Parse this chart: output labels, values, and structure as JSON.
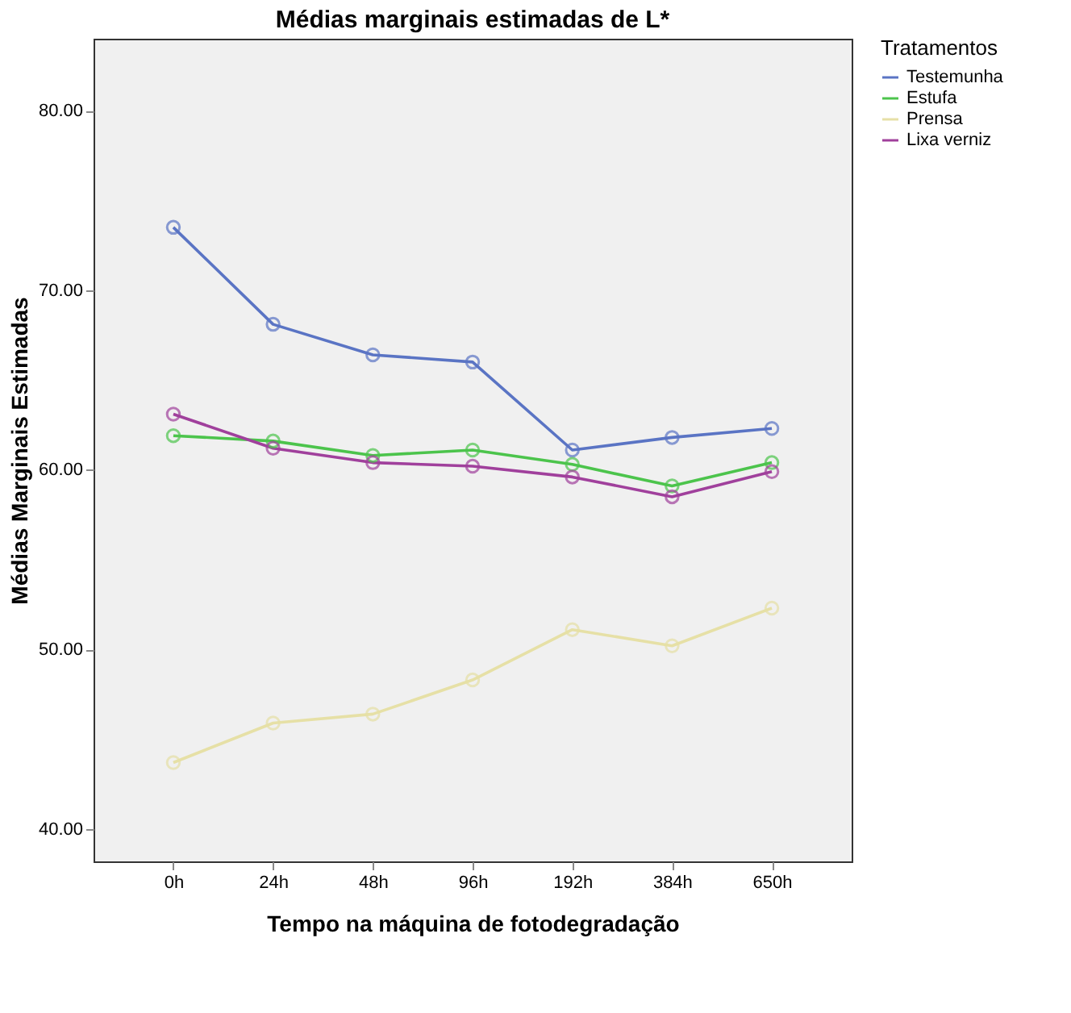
{
  "chart_data": {
    "type": "line",
    "title": "Médias marginais estimadas de L*",
    "xlabel": "Tempo na máquina de fotodegradação",
    "ylabel": "Médias Marginais Estimadas",
    "legend_title": "Tratamentos",
    "categories": [
      "0h",
      "24h",
      "48h",
      "96h",
      "192h",
      "384h",
      "650h"
    ],
    "series": [
      {
        "name": "Testemunha",
        "color": "#5a74c4",
        "values": [
          73.5,
          68.1,
          66.4,
          66.0,
          61.1,
          61.8,
          62.3
        ]
      },
      {
        "name": "Estufa",
        "color": "#4cc44c",
        "values": [
          61.9,
          61.6,
          60.8,
          61.1,
          60.3,
          59.1,
          60.4
        ]
      },
      {
        "name": "Prensa",
        "color": "#e6e0a6",
        "values": [
          43.7,
          45.9,
          46.4,
          48.3,
          51.1,
          50.2,
          52.3
        ]
      },
      {
        "name": "Lixa verniz",
        "color": "#a0409c",
        "values": [
          63.1,
          61.2,
          60.4,
          60.2,
          59.6,
          58.5,
          59.9
        ]
      }
    ],
    "ylim": [
      38.2,
      84
    ],
    "yticks": [
      {
        "value": 40,
        "label": "40.00"
      },
      {
        "value": 50,
        "label": "50.00"
      },
      {
        "value": 60,
        "label": "60.00"
      },
      {
        "value": 70,
        "label": "70.00"
      },
      {
        "value": 80,
        "label": "80.00"
      }
    ],
    "grid": false,
    "legend": "top right",
    "marker": "circle",
    "line_style": "solid"
  }
}
